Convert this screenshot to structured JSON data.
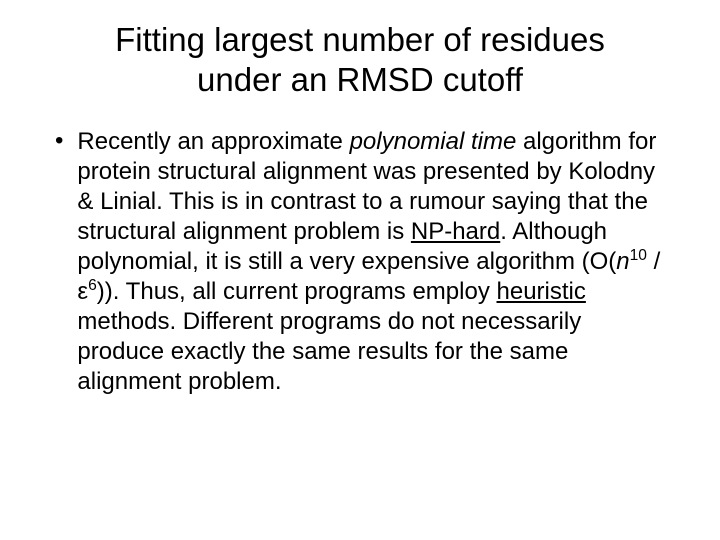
{
  "title": {
    "line1": "Fitting largest number of residues",
    "line2": "under an RMSD cutoff"
  },
  "bullet": {
    "marker": "•",
    "text_part1": "Recently an approximate ",
    "text_italic1": "polynomial time",
    "text_part2": " algorithm for protein structural alignment was presented by Kolodny & Linial. This is in contrast to a rumour saying that the structural alignment problem is ",
    "text_underline1": "NP-hard",
    "text_part3": ". Although polynomial, it is still a very expensive algorithm (O(",
    "complexity_var1": "n",
    "complexity_exp1": "10",
    "complexity_mid": " / ε",
    "complexity_exp2": "6",
    "text_part4": ")). Thus, all current programs employ ",
    "text_underline2": "heuristic",
    "text_part5": " methods. Different programs do not necessarily produce exactly the same results for the same alignment problem."
  },
  "colors": {
    "background": "#ffffff",
    "text": "#000000"
  },
  "typography": {
    "title_fontsize": 33,
    "body_fontsize": 24,
    "font_family": "Arial"
  }
}
